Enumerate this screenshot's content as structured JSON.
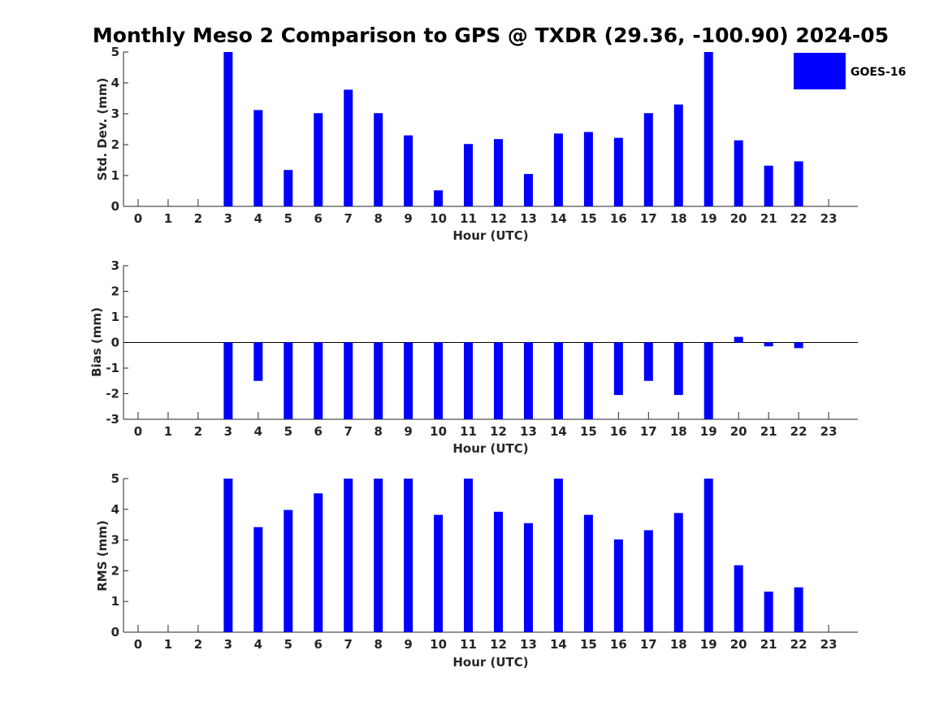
{
  "chart_data": {
    "type": "bar",
    "title": "Monthly Meso 2 Comparison to GPS @ TXDR (29.36, -100.90) 2024-05",
    "legend": {
      "entries": [
        "GOES-16"
      ],
      "placement": "top-right",
      "color": "#0000ff"
    },
    "categories": [
      "0",
      "1",
      "2",
      "3",
      "4",
      "5",
      "6",
      "7",
      "8",
      "9",
      "10",
      "11",
      "12",
      "13",
      "14",
      "15",
      "16",
      "17",
      "18",
      "19",
      "20",
      "21",
      "22",
      "23"
    ],
    "panels": [
      {
        "name": "std-dev",
        "ylabel": "Std. Dev. (mm)",
        "xlabel": "Hour (UTC)",
        "ylim": [
          0,
          5
        ],
        "yticks": [
          "0",
          "1",
          "2",
          "3",
          "4",
          "5"
        ],
        "series": [
          {
            "name": "GOES-16",
            "values": [
              null,
              null,
              null,
              5.0,
              3.12,
              1.18,
              3.02,
              3.78,
              3.02,
              2.3,
              0.52,
              2.02,
              2.18,
              1.05,
              2.36,
              2.41,
              2.22,
              3.02,
              3.3,
              5.0,
              2.14,
              1.32,
              1.46,
              null
            ]
          }
        ]
      },
      {
        "name": "bias",
        "ylabel": "Bias (mm)",
        "xlabel": "Hour (UTC)",
        "ylim": [
          -3,
          3
        ],
        "yticks": [
          "-3",
          "-2",
          "-1",
          "0",
          "1",
          "2",
          "3"
        ],
        "series": [
          {
            "name": "GOES-16",
            "values": [
              null,
              null,
              null,
              -3.0,
              -1.5,
              -3.0,
              -3.0,
              -3.0,
              -3.0,
              -3.0,
              -3.0,
              -3.0,
              -3.0,
              -3.0,
              -3.0,
              -3.0,
              -2.05,
              -1.5,
              -2.05,
              -3.0,
              0.22,
              -0.15,
              -0.22,
              null
            ]
          }
        ]
      },
      {
        "name": "rms",
        "ylabel": "RMS (mm)",
        "xlabel": "Hour (UTC)",
        "ylim": [
          0,
          5
        ],
        "yticks": [
          "0",
          "1",
          "2",
          "3",
          "4",
          "5"
        ],
        "series": [
          {
            "name": "GOES-16",
            "values": [
              null,
              null,
              null,
              5.0,
              3.42,
              3.98,
              4.52,
              5.0,
              5.0,
              5.0,
              3.82,
              5.0,
              3.92,
              3.55,
              5.0,
              3.82,
              3.02,
              3.32,
              3.88,
              5.0,
              2.18,
              1.32,
              1.46,
              null
            ]
          }
        ]
      }
    ]
  }
}
